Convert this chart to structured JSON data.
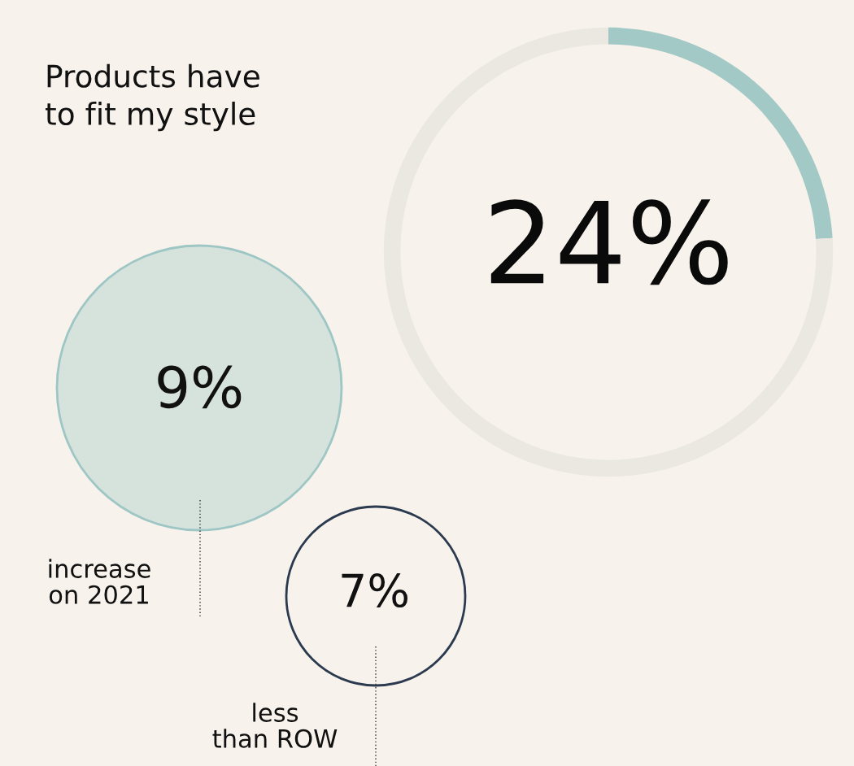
{
  "chart_data": [
    {
      "type": "donut",
      "title": "Products have\nto fit my style",
      "categories": [
        null,
        null
      ],
      "values": [
        24,
        76
      ],
      "colors": [
        "#a3c9c7",
        "#ebe8e2"
      ],
      "annotations": [
        "24%"
      ]
    },
    {
      "type": "other",
      "annotations": [
        "9%",
        "increase\non 2021",
        "7%",
        "less\nthan ROW"
      ]
    }
  ]
}
